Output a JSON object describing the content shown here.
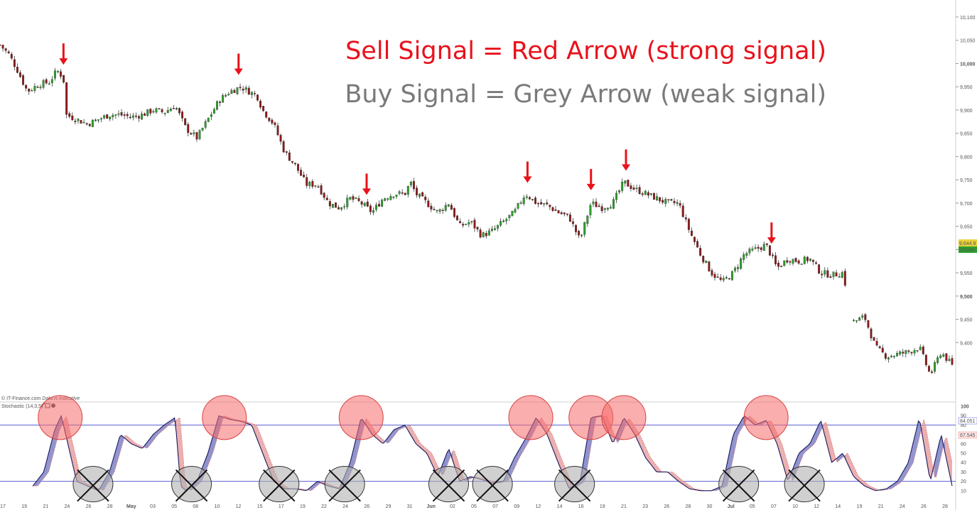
{
  "annotations": {
    "sell": "Sell Signal = Red Arrow (strong signal)",
    "buy": "Buy Signal = Grey Arrow (weak signal)"
  },
  "meta": {
    "source": "© IT-Finance.com",
    "note": "Data is indicative",
    "indicator": "Stochastic (14,3,5)",
    "last_price": "9,644.9",
    "timer": "2h18m",
    "stoch_k_value": "84.051",
    "stoch_d_value": "67.545"
  },
  "colors": {
    "up_candle": "#2ca02c",
    "down_candle": "#8b1a1a",
    "sell_arrow": "#e8121b",
    "sell_circle": "#f56b6b",
    "buy_circle": "#b0b0b0",
    "stoch_k": "#1a1a5e",
    "stoch_fill_up": "#7a7fc4",
    "stoch_fill_down": "#e8a0a0",
    "level_line": "#5b5fd1",
    "price_tag": "#e8d13a",
    "timer_tag": "#2ca02c"
  },
  "chart_data": [
    {
      "type": "candlestick",
      "price_axis": {
        "range": [
          9350,
          10100
        ],
        "ticks": [
          "10,100",
          "10,050",
          "10,000",
          "9,950",
          "9,900",
          "9,850",
          "9,800",
          "9,750",
          "9,700",
          "9,650",
          "9,600",
          "9,550",
          "9,500",
          "9,450",
          "9,400"
        ],
        "bold_ticks": [
          "10,000",
          "9,500"
        ]
      },
      "date_axis": {
        "labels": [
          "17",
          "19",
          "21",
          "24",
          "26",
          "28",
          "May",
          "03",
          "05",
          "08",
          "10",
          "12",
          "15",
          "17",
          "19",
          "22",
          "24",
          "26",
          "29",
          "31",
          "Jun",
          "02",
          "05",
          "07",
          "09",
          "12",
          "14",
          "16",
          "19",
          "21",
          "23",
          "26",
          "28",
          "30",
          "Jul",
          "05",
          "07",
          "10",
          "12",
          "14",
          "19",
          "21",
          "24",
          "26",
          "28"
        ]
      },
      "close_path": [
        [
          0,
          10040
        ],
        [
          0.8,
          10020
        ],
        [
          1.5,
          9990
        ],
        [
          2.5,
          9940
        ],
        [
          3.5,
          9955
        ],
        [
          4.5,
          9960
        ],
        [
          5.2,
          9985
        ],
        [
          5.8,
          9970
        ],
        [
          6.0,
          9890
        ],
        [
          7,
          9880
        ],
        [
          8,
          9870
        ],
        [
          9,
          9880
        ],
        [
          10,
          9890
        ],
        [
          11,
          9890
        ],
        [
          12,
          9885
        ],
        [
          13,
          9890
        ],
        [
          14,
          9900
        ],
        [
          15,
          9895
        ],
        [
          16,
          9910
        ],
        [
          17,
          9860
        ],
        [
          18,
          9840
        ],
        [
          19,
          9880
        ],
        [
          20,
          9920
        ],
        [
          21,
          9940
        ],
        [
          22,
          9950
        ],
        [
          23.5,
          9930
        ],
        [
          24,
          9900
        ],
        [
          25,
          9870
        ],
        [
          26,
          9810
        ],
        [
          27,
          9780
        ],
        [
          28,
          9740
        ],
        [
          29,
          9740
        ],
        [
          30,
          9700
        ],
        [
          31,
          9690
        ],
        [
          32,
          9710
        ],
        [
          33,
          9700
        ],
        [
          34,
          9680
        ],
        [
          35,
          9710
        ],
        [
          36,
          9720
        ],
        [
          37,
          9720
        ],
        [
          37.5,
          9745
        ],
        [
          38,
          9720
        ],
        [
          39,
          9700
        ],
        [
          40,
          9680
        ],
        [
          41,
          9700
        ],
        [
          42,
          9650
        ],
        [
          43,
          9660
        ],
        [
          44,
          9630
        ],
        [
          45,
          9640
        ],
        [
          46,
          9660
        ],
        [
          47,
          9680
        ],
        [
          48,
          9720
        ],
        [
          49,
          9700
        ],
        [
          50,
          9695
        ],
        [
          51,
          9680
        ],
        [
          52,
          9670
        ],
        [
          53,
          9620
        ],
        [
          54,
          9700
        ],
        [
          55,
          9690
        ],
        [
          56,
          9700
        ],
        [
          57,
          9745
        ],
        [
          58,
          9730
        ],
        [
          59,
          9720
        ],
        [
          60,
          9710
        ],
        [
          61,
          9700
        ],
        [
          62,
          9700
        ],
        [
          63,
          9640
        ],
        [
          64,
          9590
        ],
        [
          65,
          9550
        ],
        [
          66,
          9530
        ],
        [
          67,
          9550
        ],
        [
          68,
          9590
        ],
        [
          69,
          9600
        ],
        [
          70,
          9610
        ],
        [
          71,
          9560
        ],
        [
          72,
          9580
        ],
        [
          73,
          9575
        ],
        [
          74,
          9580
        ],
        [
          75,
          9550
        ],
        [
          76,
          9545
        ],
        [
          77,
          9550
        ],
        [
          78,
          9445
        ],
        [
          79,
          9455
        ],
        [
          80,
          9390
        ],
        [
          81,
          9370
        ],
        [
          82,
          9375
        ],
        [
          83,
          9380
        ],
        [
          84,
          9390
        ],
        [
          85,
          9330
        ],
        [
          86,
          9380
        ],
        [
          87,
          9350
        ]
      ],
      "sell_signal_arrows_at": [
        5.8,
        21.8,
        33.5,
        48.2,
        54.0,
        57.2,
        70.5
      ]
    },
    {
      "type": "line",
      "title": "Stochastic (14,3,5)",
      "y_axis": {
        "range": [
          0,
          100
        ],
        "ticks": [
          "100",
          "90",
          "80",
          "70",
          "60",
          "50",
          "40",
          "30",
          "20",
          "10"
        ]
      },
      "levels": [
        80,
        20
      ],
      "series": [
        {
          "points": [
            [
              3,
              15
            ],
            [
              4,
              30
            ],
            [
              5,
              75
            ],
            [
              5.6,
              90
            ],
            [
              6.3,
              55
            ],
            [
              7,
              20
            ],
            [
              8,
              15
            ],
            [
              9,
              10
            ],
            [
              10,
              30
            ],
            [
              11,
              70
            ],
            [
              12,
              60
            ],
            [
              13,
              55
            ],
            [
              14,
              70
            ],
            [
              15,
              80
            ],
            [
              16,
              88
            ],
            [
              16.5,
              15
            ],
            [
              17,
              10
            ],
            [
              18,
              20
            ],
            [
              19,
              50
            ],
            [
              20,
              90
            ],
            [
              21,
              86
            ],
            [
              22,
              84
            ],
            [
              23,
              80
            ],
            [
              24,
              50
            ],
            [
              25,
              20
            ],
            [
              26,
              12
            ],
            [
              27,
              12
            ],
            [
              28,
              10
            ],
            [
              29,
              20
            ],
            [
              30,
              15
            ],
            [
              31,
              12
            ],
            [
              32,
              40
            ],
            [
              33,
              88
            ],
            [
              34,
              70
            ],
            [
              35,
              60
            ],
            [
              36,
              75
            ],
            [
              37,
              80
            ],
            [
              38,
              60
            ],
            [
              39,
              50
            ],
            [
              40,
              25
            ],
            [
              41,
              55
            ],
            [
              42,
              20
            ],
            [
              43,
              25
            ],
            [
              44,
              22
            ],
            [
              45,
              18
            ],
            [
              46,
              20
            ],
            [
              47,
              45
            ],
            [
              48,
              65
            ],
            [
              49,
              88
            ],
            [
              50,
              70
            ],
            [
              51,
              40
            ],
            [
              52,
              12
            ],
            [
              53,
              20
            ],
            [
              54,
              88
            ],
            [
              55,
              90
            ],
            [
              56,
              60
            ],
            [
              57,
              88
            ],
            [
              58,
              70
            ],
            [
              59,
              45
            ],
            [
              60,
              30
            ],
            [
              61,
              30
            ],
            [
              62,
              20
            ],
            [
              63,
              12
            ],
            [
              64,
              10
            ],
            [
              65,
              10
            ],
            [
              66,
              15
            ],
            [
              67,
              70
            ],
            [
              68,
              90
            ],
            [
              69,
              80
            ],
            [
              70,
              85
            ],
            [
              71,
              60
            ],
            [
              72,
              20
            ],
            [
              73,
              50
            ],
            [
              74,
              60
            ],
            [
              75,
              85
            ],
            [
              76,
              40
            ],
            [
              77,
              50
            ],
            [
              78,
              25
            ],
            [
              79,
              15
            ],
            [
              80,
              10
            ],
            [
              81,
              12
            ],
            [
              82,
              20
            ],
            [
              83,
              40
            ],
            [
              84,
              88
            ],
            [
              85,
              20
            ],
            [
              86,
              70
            ],
            [
              87,
              15
            ]
          ]
        }
      ],
      "overbought_circles_at": [
        5.5,
        20.5,
        33.0,
        48.5,
        54.0,
        57.0,
        70.0
      ],
      "oversold_x_circles_at": [
        8.5,
        17.5,
        25.5,
        31.5,
        41.0,
        45.0,
        52.5,
        67.5,
        73.5
      ]
    }
  ]
}
